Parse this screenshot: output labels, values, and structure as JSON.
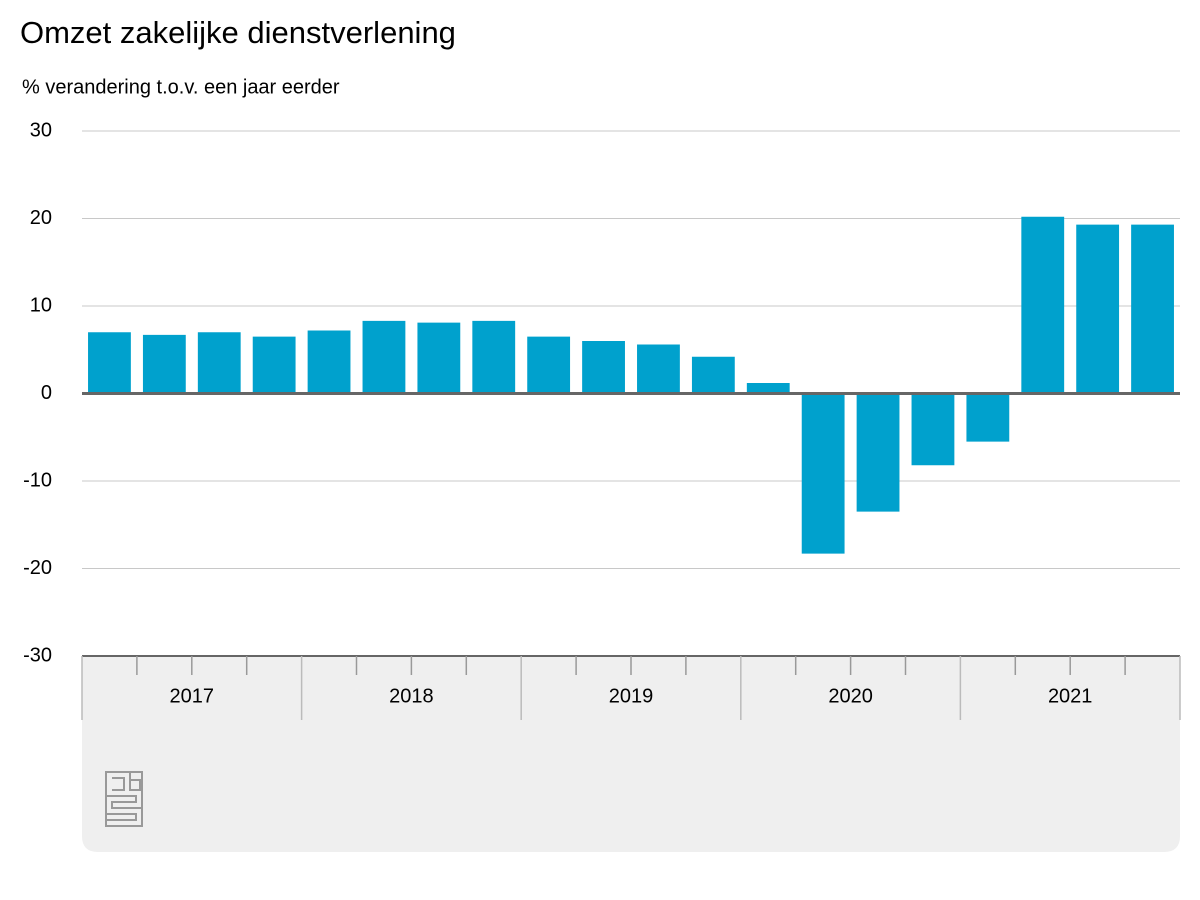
{
  "chart_data": {
    "type": "bar",
    "title": "Omzet zakelijke dienstverlening",
    "subtitle": "% verandering t.o.v. een jaar eerder",
    "categories": [
      null,
      null,
      null,
      null,
      null,
      null,
      null,
      null,
      null,
      null,
      null,
      null,
      null,
      null,
      null,
      null,
      null,
      null,
      null,
      null
    ],
    "groups": [
      "2017",
      "2018",
      "2019",
      "2020",
      "2021"
    ],
    "values": [
      7.0,
      6.7,
      7.0,
      6.5,
      7.2,
      8.3,
      8.1,
      8.3,
      6.5,
      6.0,
      5.6,
      4.2,
      1.2,
      -18.3,
      -13.5,
      -8.2,
      -5.5,
      20.2,
      19.3,
      19.3
    ],
    "color": "#00a1cd",
    "ylim": [
      -30,
      30
    ],
    "yticks": [
      -30,
      -20,
      -10,
      0,
      10,
      20,
      30
    ],
    "grid": true
  }
}
